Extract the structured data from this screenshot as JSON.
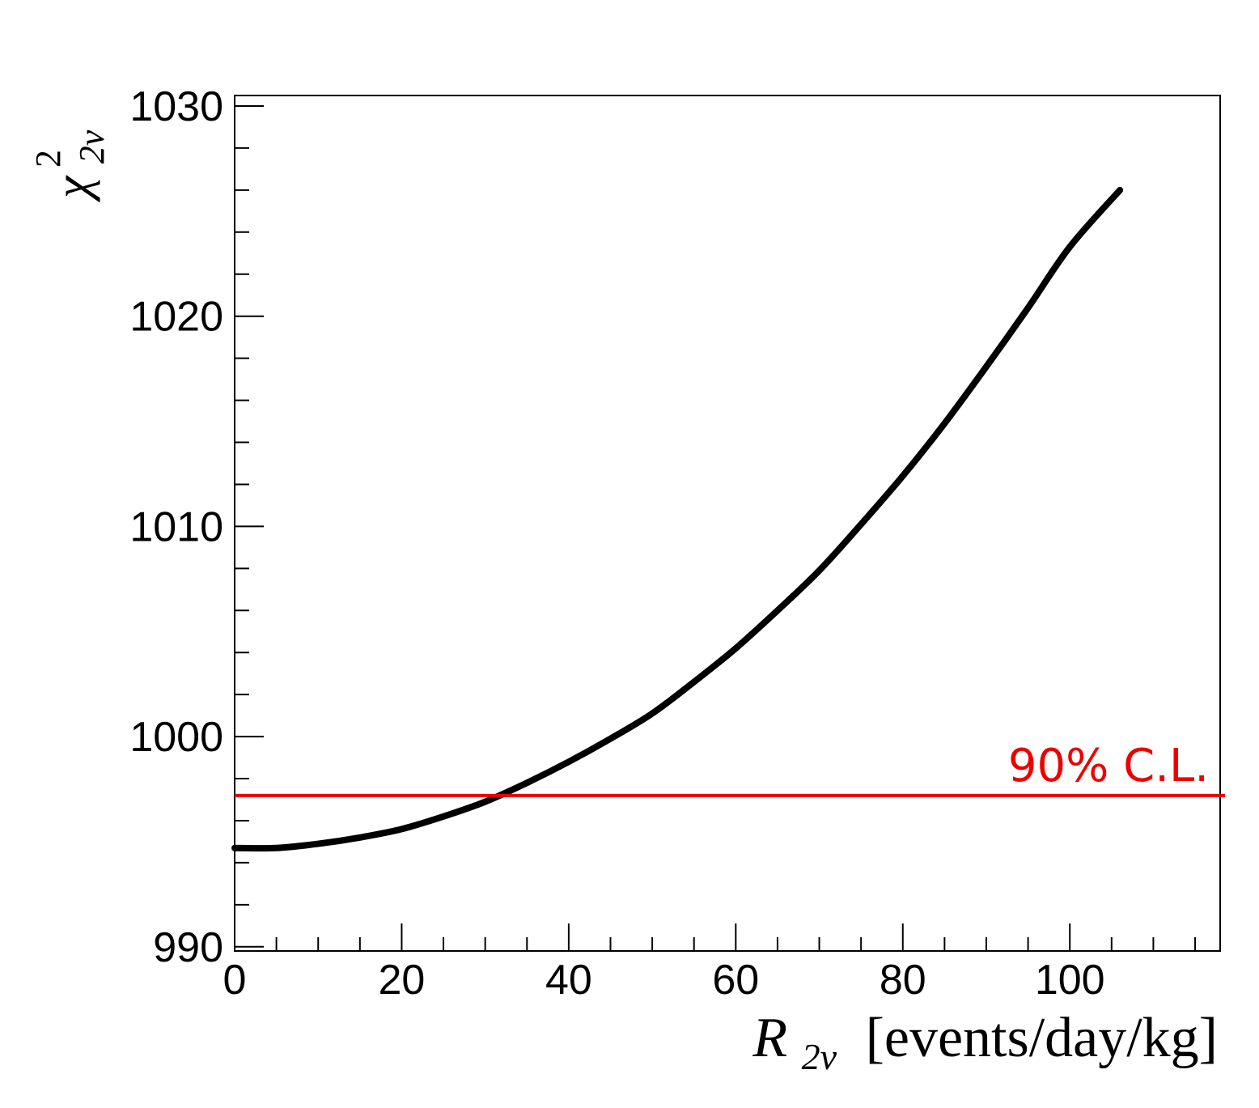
{
  "chart_data": {
    "type": "line",
    "title": "",
    "xlabel": {
      "main": "R",
      "sub": "2ν",
      "units": "[events/day/kg]"
    },
    "ylabel": {
      "main": "χ",
      "sup": "2",
      "sub": "2ν"
    },
    "xlim": [
      0,
      118
    ],
    "ylim": [
      989.8,
      1030.5
    ],
    "x_ticks": [
      0,
      20,
      40,
      60,
      80,
      100
    ],
    "y_ticks": [
      990,
      1000,
      1010,
      1020,
      1030
    ],
    "x_tick_labels": [
      "0",
      "20",
      "40",
      "60",
      "80",
      "100"
    ],
    "y_tick_labels": [
      "990",
      "1000",
      "1010",
      "1020",
      "1030"
    ],
    "grid": false,
    "series": [
      {
        "color": "#000000",
        "x": [
          0,
          5,
          10,
          15,
          20,
          25,
          30,
          35,
          40,
          45,
          50,
          55,
          60,
          65,
          70,
          75,
          80,
          85,
          90,
          95,
          100,
          106
        ],
        "y": [
          994.7,
          994.7,
          994.9,
          995.2,
          995.6,
          996.2,
          996.9,
          997.8,
          998.8,
          999.9,
          1001.1,
          1002.6,
          1004.2,
          1006.0,
          1007.9,
          1010.1,
          1012.4,
          1014.9,
          1017.6,
          1020.4,
          1023.3,
          1026.0
        ]
      }
    ],
    "annotations": [
      {
        "label": "90% C.L.",
        "type": "hline",
        "y": 997.2,
        "color": "#ee0000"
      }
    ]
  }
}
